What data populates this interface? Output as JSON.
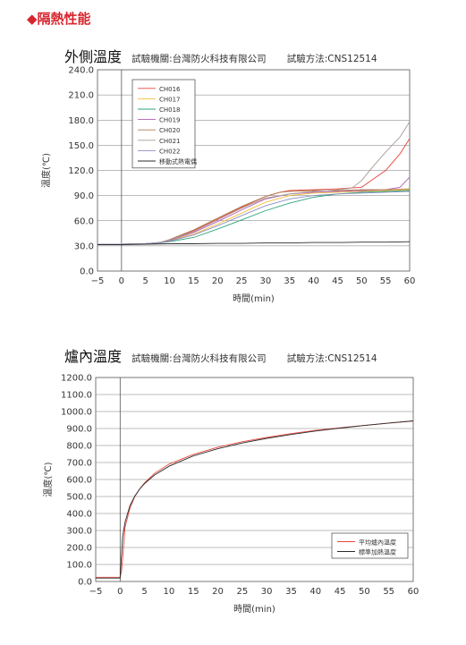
{
  "section_title": "◆隔熱性能",
  "charts": [
    {
      "heading": "外側溫度",
      "lab": "試驗機關:台灣防火科技有限公司",
      "method": "試驗方法:CNS12514"
    },
    {
      "heading": "爐內溫度",
      "lab": "試驗機關:台灣防火科技有限公司",
      "method": "試驗方法:CNS12514"
    }
  ],
  "chart_data": [
    {
      "type": "line",
      "title": "外側溫度",
      "xlabel": "時間(min)",
      "ylabel": "溫度(℃)",
      "xlim": [
        -5,
        60
      ],
      "ylim": [
        0,
        240
      ],
      "xticks": [
        -5,
        0,
        5,
        10,
        15,
        20,
        25,
        30,
        35,
        40,
        45,
        50,
        55,
        60
      ],
      "yticks": [
        "0.0",
        "30.0",
        "60.0",
        "90.0",
        "120.0",
        "150.0",
        "180.0",
        "210.0",
        "240.0"
      ],
      "grid": "horizontal",
      "legend_position": "top-left",
      "series": [
        {
          "name": "CH016",
          "color": "#e8453c",
          "x": [
            -5,
            0,
            5,
            8,
            10,
            15,
            20,
            25,
            30,
            33,
            35,
            40,
            45,
            50,
            52,
            55,
            58,
            60
          ],
          "y": [
            32,
            32,
            32.5,
            34,
            37,
            48,
            62,
            76,
            89,
            94,
            96,
            97,
            98,
            100,
            108,
            120,
            140,
            158
          ]
        },
        {
          "name": "CH017",
          "color": "#f2c037",
          "x": [
            -5,
            0,
            5,
            8,
            10,
            15,
            20,
            25,
            30,
            35,
            40,
            45,
            50,
            55,
            60
          ],
          "y": [
            32,
            32,
            32.5,
            33.5,
            36,
            44,
            56,
            69,
            82,
            90,
            93,
            94,
            95,
            96,
            97
          ]
        },
        {
          "name": "CH018",
          "color": "#2aa37a",
          "x": [
            -5,
            0,
            5,
            8,
            10,
            15,
            20,
            25,
            30,
            35,
            40,
            45,
            50,
            55,
            60
          ],
          "y": [
            32,
            32,
            32.5,
            33.5,
            35,
            40,
            50,
            61,
            72,
            81,
            88,
            92,
            94,
            95,
            96
          ]
        },
        {
          "name": "CH019",
          "color": "#b35bb5",
          "x": [
            -5,
            0,
            5,
            8,
            10,
            15,
            20,
            25,
            30,
            35,
            40,
            45,
            50,
            55,
            58,
            60
          ],
          "y": [
            32,
            32,
            32.5,
            34,
            36.5,
            46,
            59,
            73,
            86,
            92,
            94,
            95,
            96,
            97,
            100,
            112
          ]
        },
        {
          "name": "CH020",
          "color": "#b07a4f",
          "x": [
            -5,
            0,
            5,
            8,
            10,
            15,
            20,
            25,
            30,
            33,
            35,
            40,
            45,
            50,
            55,
            60
          ],
          "y": [
            32,
            32,
            32.5,
            34,
            37.5,
            49,
            63,
            77,
            89,
            94,
            95,
            96,
            96,
            97,
            97,
            98
          ]
        },
        {
          "name": "CH021",
          "color": "#a89a93",
          "x": [
            -5,
            0,
            5,
            8,
            10,
            15,
            20,
            25,
            30,
            35,
            40,
            45,
            48,
            50,
            52,
            55,
            58,
            60
          ],
          "y": [
            32,
            32,
            32.5,
            34,
            37,
            47,
            61,
            75,
            87,
            92,
            95,
            97,
            99,
            108,
            122,
            142,
            160,
            178
          ]
        },
        {
          "name": "CH022",
          "color": "#8b8dc2",
          "x": [
            -5,
            0,
            5,
            8,
            10,
            15,
            20,
            25,
            30,
            35,
            40,
            45,
            50,
            55,
            60
          ],
          "y": [
            32,
            32,
            32.5,
            33.5,
            35.5,
            43,
            54,
            66,
            78,
            86,
            90,
            92,
            93,
            94,
            95
          ]
        },
        {
          "name": "移動式熱電偶",
          "color": "#2b2b2b",
          "x": [
            -5,
            0,
            5,
            10,
            15,
            20,
            25,
            30,
            35,
            40,
            45,
            50,
            55,
            60
          ],
          "y": [
            31.5,
            31.5,
            32,
            32.5,
            32.5,
            33,
            33,
            33.5,
            33.5,
            34,
            34,
            34.5,
            34.5,
            35
          ]
        }
      ]
    },
    {
      "type": "line",
      "title": "爐內溫度",
      "xlabel": "時間(min)",
      "ylabel": "溫度(℃)",
      "xlim": [
        -5,
        60
      ],
      "ylim": [
        0,
        1200
      ],
      "xticks": [
        -5,
        0,
        5,
        10,
        15,
        20,
        25,
        30,
        35,
        40,
        45,
        50,
        55,
        60
      ],
      "yticks": [
        "0.0",
        "100.0",
        "200.0",
        "300.0",
        "400.0",
        "500.0",
        "600.0",
        "700.0",
        "800.0",
        "900.0",
        "1000.0",
        "1100.0",
        "1200.0"
      ],
      "grid": "horizontal",
      "legend_position": "bottom-right",
      "series": [
        {
          "name": "平均爐內溫度",
          "color": "#e8453c",
          "x": [
            -5,
            0,
            0.3,
            0.7,
            1,
            2,
            3,
            4,
            5,
            7,
            10,
            15,
            20,
            25,
            30,
            35,
            40,
            45,
            50,
            55,
            60
          ],
          "y": [
            25,
            25,
            60,
            200,
            320,
            430,
            500,
            545,
            580,
            635,
            690,
            748,
            790,
            822,
            848,
            870,
            889,
            904,
            918,
            932,
            945
          ]
        },
        {
          "name": "標準加熱溫度",
          "color": "#2b2b2b",
          "x": [
            -5,
            0,
            0.5,
            1,
            2,
            3,
            4,
            5,
            7,
            10,
            15,
            20,
            25,
            30,
            35,
            40,
            45,
            50,
            55,
            60
          ],
          "y": [
            20,
            20,
            260,
            349,
            445,
            502,
            544,
            576,
            626,
            678,
            739,
            781,
            815,
            842,
            865,
            885,
            902,
            918,
            932,
            945
          ]
        }
      ]
    }
  ]
}
